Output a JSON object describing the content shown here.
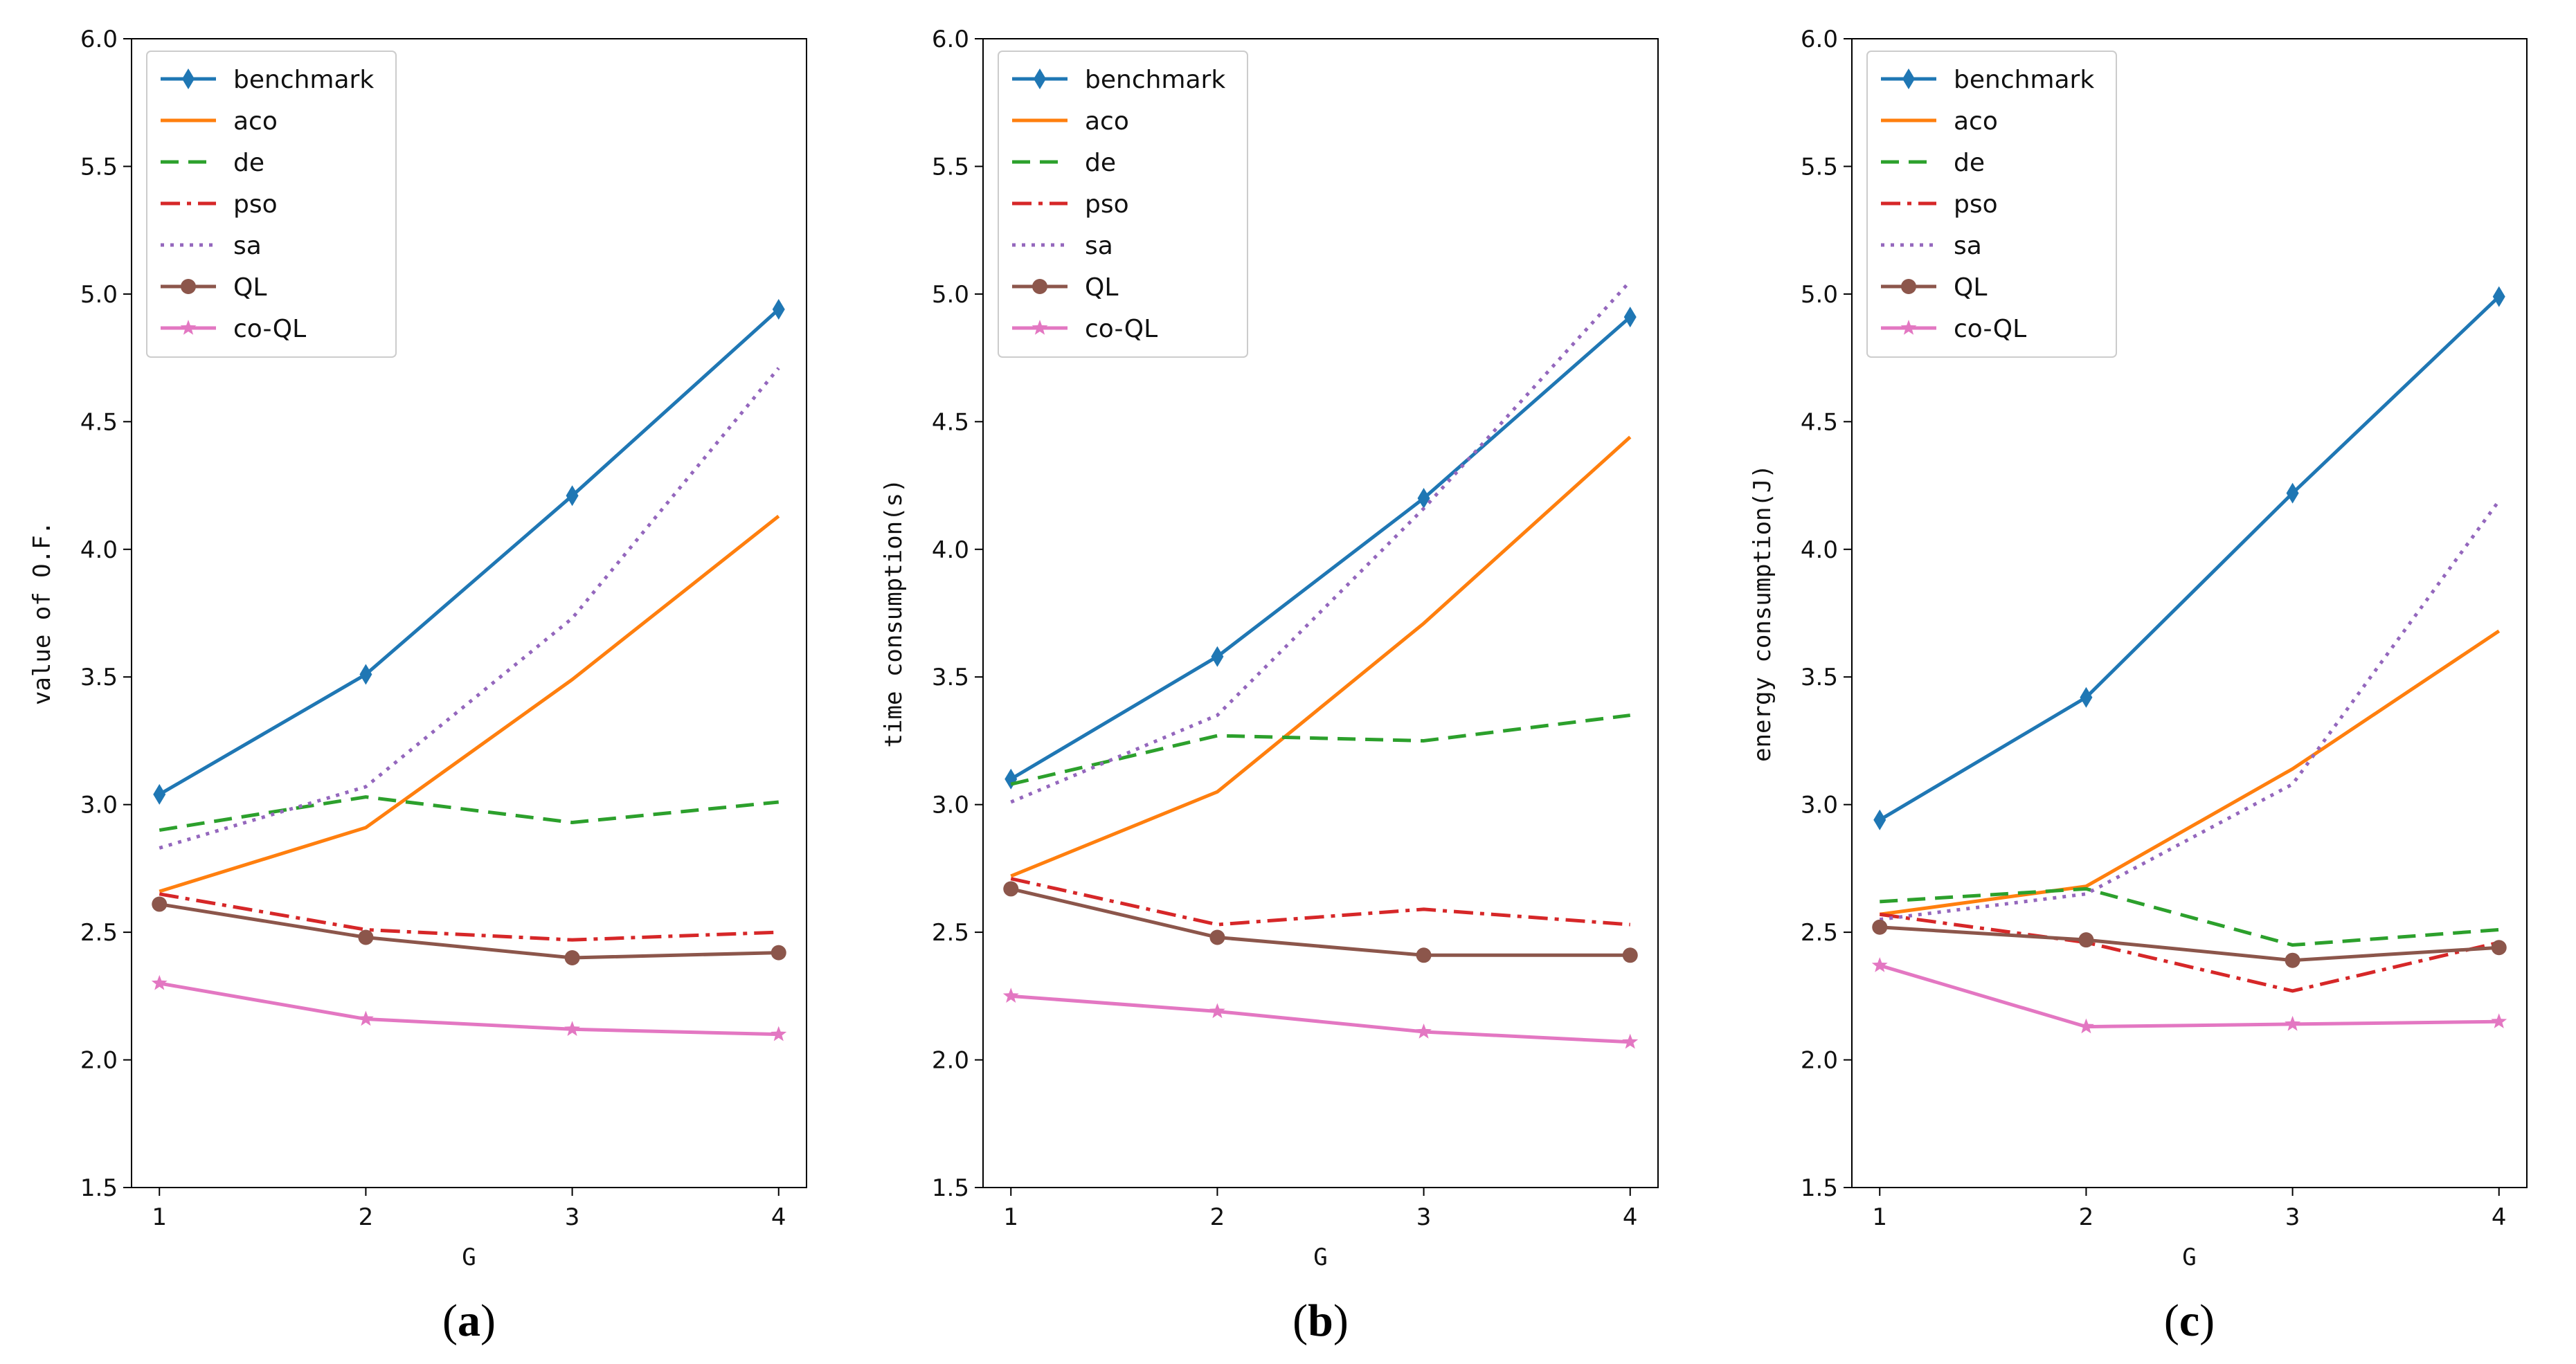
{
  "series_styles": [
    {
      "name": "benchmark",
      "color": "#1f77b4",
      "dash": "",
      "marker": "diamond"
    },
    {
      "name": "aco",
      "color": "#ff7f0e",
      "dash": "",
      "marker": "none"
    },
    {
      "name": "de",
      "color": "#2ca02c",
      "dash": "dashed",
      "marker": "none"
    },
    {
      "name": "pso",
      "color": "#d62728",
      "dash": "dashdot",
      "marker": "none"
    },
    {
      "name": "sa",
      "color": "#9467bd",
      "dash": "dotted",
      "marker": "none"
    },
    {
      "name": "QL",
      "color": "#8c564b",
      "dash": "",
      "marker": "circle"
    },
    {
      "name": "co-QL",
      "color": "#e377c2",
      "dash": "",
      "marker": "star"
    }
  ],
  "chart_data": [
    {
      "type": "line",
      "caption_letter": "a",
      "title": "",
      "xlabel": "G",
      "ylabel": "value of O.F.",
      "x": [
        1,
        2,
        3,
        4
      ],
      "xticks": [
        "1",
        "2",
        "3",
        "4"
      ],
      "ylim": [
        1.5,
        6.0
      ],
      "yticks": [
        "1.5",
        "2.0",
        "2.5",
        "3.0",
        "3.5",
        "4.0",
        "4.5",
        "5.0",
        "5.5",
        "6.0"
      ],
      "legend": "top-left",
      "series": [
        {
          "name": "benchmark",
          "values": [
            3.04,
            3.51,
            4.21,
            4.94
          ]
        },
        {
          "name": "aco",
          "values": [
            2.66,
            2.91,
            3.49,
            4.13
          ]
        },
        {
          "name": "de",
          "values": [
            2.9,
            3.03,
            2.93,
            3.01
          ]
        },
        {
          "name": "pso",
          "values": [
            2.65,
            2.51,
            2.47,
            2.5
          ]
        },
        {
          "name": "sa",
          "values": [
            2.83,
            3.07,
            3.73,
            4.71
          ]
        },
        {
          "name": "QL",
          "values": [
            2.61,
            2.48,
            2.4,
            2.42
          ]
        },
        {
          "name": "co-QL",
          "values": [
            2.3,
            2.16,
            2.12,
            2.1
          ]
        }
      ]
    },
    {
      "type": "line",
      "caption_letter": "b",
      "title": "",
      "xlabel": "G",
      "ylabel": "time consumption(s)",
      "x": [
        1,
        2,
        3,
        4
      ],
      "xticks": [
        "1",
        "2",
        "3",
        "4"
      ],
      "ylim": [
        1.5,
        6.0
      ],
      "yticks": [
        "1.5",
        "2.0",
        "2.5",
        "3.0",
        "3.5",
        "4.0",
        "4.5",
        "5.0",
        "5.5",
        "6.0"
      ],
      "legend": "top-left",
      "series": [
        {
          "name": "benchmark",
          "values": [
            3.1,
            3.58,
            4.2,
            4.91
          ]
        },
        {
          "name": "aco",
          "values": [
            2.72,
            3.05,
            3.71,
            4.44
          ]
        },
        {
          "name": "de",
          "values": [
            3.08,
            3.27,
            3.25,
            3.35
          ]
        },
        {
          "name": "pso",
          "values": [
            2.71,
            2.53,
            2.59,
            2.53
          ]
        },
        {
          "name": "sa",
          "values": [
            3.01,
            3.35,
            4.16,
            5.05
          ]
        },
        {
          "name": "QL",
          "values": [
            2.67,
            2.48,
            2.41,
            2.41
          ]
        },
        {
          "name": "co-QL",
          "values": [
            2.25,
            2.19,
            2.11,
            2.07
          ]
        }
      ]
    },
    {
      "type": "line",
      "caption_letter": "c",
      "title": "",
      "xlabel": "G",
      "ylabel": "energy consumption(J)",
      "x": [
        1,
        2,
        3,
        4
      ],
      "xticks": [
        "1",
        "2",
        "3",
        "4"
      ],
      "ylim": [
        1.5,
        6.0
      ],
      "yticks": [
        "1.5",
        "2.0",
        "2.5",
        "3.0",
        "3.5",
        "4.0",
        "4.5",
        "5.0",
        "5.5",
        "6.0"
      ],
      "legend": "top-left",
      "series": [
        {
          "name": "benchmark",
          "values": [
            2.94,
            3.42,
            4.22,
            4.99
          ]
        },
        {
          "name": "aco",
          "values": [
            2.57,
            2.68,
            3.14,
            3.68
          ]
        },
        {
          "name": "de",
          "values": [
            2.62,
            2.67,
            2.45,
            2.51
          ]
        },
        {
          "name": "pso",
          "values": [
            2.57,
            2.46,
            2.27,
            2.46
          ]
        },
        {
          "name": "sa",
          "values": [
            2.55,
            2.65,
            3.08,
            4.19
          ]
        },
        {
          "name": "QL",
          "values": [
            2.52,
            2.47,
            2.39,
            2.44
          ]
        },
        {
          "name": "co-QL",
          "values": [
            2.37,
            2.13,
            2.14,
            2.15
          ]
        }
      ]
    }
  ]
}
